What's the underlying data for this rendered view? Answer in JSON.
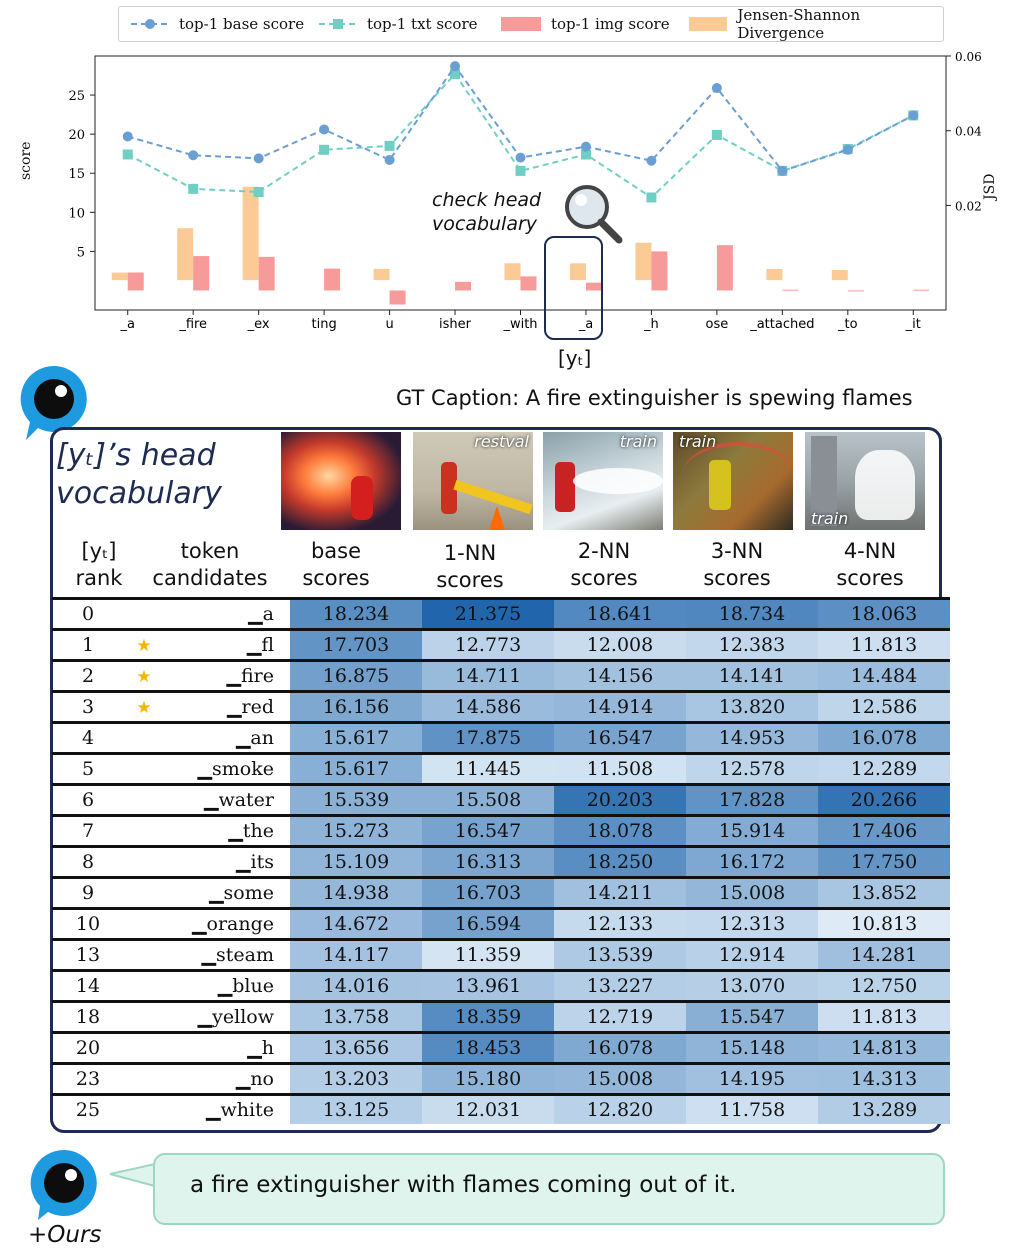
{
  "chart_data": {
    "type": "bar+line",
    "legend": [
      "top-1 base score",
      "top-1 txt score",
      "top-1 img score",
      "Jensen-Shannon Divergence"
    ],
    "categories": [
      "_a",
      "_fire",
      "_ex",
      "ting",
      "u",
      "isher",
      "_with",
      "_a",
      "_h",
      "ose",
      "_attached",
      "_to",
      "_it"
    ],
    "left_axis": {
      "label": "score",
      "ticks": [
        5,
        10,
        15,
        20,
        25
      ],
      "range": [
        -2.5,
        30
      ]
    },
    "right_axis": {
      "label": "JSD",
      "ticks": [
        "0.02",
        "0.04",
        "0.06"
      ],
      "range": [
        -0.008,
        0.06
      ]
    },
    "series": [
      {
        "name": "top-1 base score",
        "kind": "line",
        "axis": "left",
        "color": "#6b9fd4",
        "values": [
          19.7,
          17.3,
          16.9,
          20.6,
          16.7,
          28.7,
          17.0,
          18.4,
          16.6,
          25.9,
          15.3,
          18.0,
          22.4
        ]
      },
      {
        "name": "top-1 txt score",
        "kind": "line",
        "axis": "left",
        "color": "#6fcfc4",
        "values": [
          17.4,
          13.0,
          12.6,
          18.0,
          18.5,
          27.7,
          15.3,
          17.4,
          11.9,
          19.9,
          15.3,
          18.1,
          22.4
        ]
      },
      {
        "name": "top-1 img score",
        "kind": "bar",
        "axis": "left",
        "color": "#f79a9a",
        "values": [
          2.3,
          4.4,
          4.3,
          2.8,
          -1.8,
          1.1,
          1.8,
          1.0,
          5.0,
          5.8,
          0.1,
          -0.1,
          0.1
        ]
      },
      {
        "name": "Jensen-Shannon Divergence",
        "kind": "bar",
        "axis": "right",
        "color": "#fccb95",
        "values": [
          0.002,
          0.0139,
          0.025,
          0.0,
          0.003,
          0.0,
          0.0045,
          0.0045,
          0.01,
          0.0,
          0.003,
          0.0027,
          0.0
        ]
      }
    ],
    "highlight_index": 7
  },
  "annotation": {
    "line1": "check head",
    "line2": "vocabulary",
    "icon": "magnifier-icon"
  },
  "target_token_label": "[yₜ]",
  "gt_caption": "GT Caption: A fire extinguisher is spewing flames",
  "card": {
    "title_line1": "[yₜ]’s head",
    "title_line2": "vocabulary",
    "thumbnails": [
      {
        "label": "",
        "theme": "fire-extinguisher-flames"
      },
      {
        "label": "restval",
        "theme": "hydrant-hose"
      },
      {
        "label": "train",
        "theme": "hydrant-spray"
      },
      {
        "label": "train",
        "theme": "hydrant-rainbow"
      },
      {
        "label": "train",
        "theme": "street-water"
      }
    ],
    "headers": [
      {
        "l1": "[yₜ]",
        "l2": "rank"
      },
      {
        "l1": "token",
        "l2": "candidates"
      },
      {
        "l1": "base",
        "l2": "scores"
      },
      {
        "l1": "1-NN",
        "l2": "scores"
      },
      {
        "l1": "2-NN",
        "l2": "scores"
      },
      {
        "l1": "3-NN",
        "l2": "scores"
      },
      {
        "l1": "4-NN",
        "l2": "scores"
      }
    ],
    "rows": [
      {
        "rank": "0",
        "star": false,
        "token": "▁a",
        "scores": [
          "18.234",
          "21.375",
          "18.641",
          "18.734",
          "18.063"
        ]
      },
      {
        "rank": "1",
        "star": true,
        "token": "▁fl",
        "scores": [
          "17.703",
          "12.773",
          "12.008",
          "12.383",
          "11.813"
        ]
      },
      {
        "rank": "2",
        "star": true,
        "token": "▁fire",
        "scores": [
          "16.875",
          "14.711",
          "14.156",
          "14.141",
          "14.484"
        ]
      },
      {
        "rank": "3",
        "star": true,
        "token": "▁red",
        "scores": [
          "16.156",
          "14.586",
          "14.914",
          "13.820",
          "12.586"
        ]
      },
      {
        "rank": "4",
        "star": false,
        "token": "▁an",
        "scores": [
          "15.617",
          "17.875",
          "16.547",
          "14.953",
          "16.078"
        ]
      },
      {
        "rank": "5",
        "star": false,
        "token": "▁smoke",
        "scores": [
          "15.617",
          "11.445",
          "11.508",
          "12.578",
          "12.289"
        ]
      },
      {
        "rank": "6",
        "star": false,
        "token": "▁water",
        "scores": [
          "15.539",
          "15.508",
          "20.203",
          "17.828",
          "20.266"
        ]
      },
      {
        "rank": "7",
        "star": false,
        "token": "▁the",
        "scores": [
          "15.273",
          "16.547",
          "18.078",
          "15.914",
          "17.406"
        ]
      },
      {
        "rank": "8",
        "star": false,
        "token": "▁its",
        "scores": [
          "15.109",
          "16.313",
          "18.250",
          "16.172",
          "17.750"
        ]
      },
      {
        "rank": "9",
        "star": false,
        "token": "▁some",
        "scores": [
          "14.938",
          "16.703",
          "14.211",
          "15.008",
          "13.852"
        ]
      },
      {
        "rank": "10",
        "star": false,
        "token": "▁orange",
        "scores": [
          "14.672",
          "16.594",
          "12.133",
          "12.313",
          "10.813"
        ]
      },
      {
        "rank": "13",
        "star": false,
        "token": "▁steam",
        "scores": [
          "14.117",
          "11.359",
          "13.539",
          "12.914",
          "14.281"
        ]
      },
      {
        "rank": "14",
        "star": false,
        "token": "▁blue",
        "scores": [
          "14.016",
          "13.961",
          "13.227",
          "13.070",
          "12.750"
        ]
      },
      {
        "rank": "18",
        "star": false,
        "token": "▁yellow",
        "scores": [
          "13.758",
          "18.359",
          "12.719",
          "15.547",
          "11.813"
        ]
      },
      {
        "rank": "20",
        "star": false,
        "token": "▁h",
        "scores": [
          "13.656",
          "18.453",
          "16.078",
          "15.148",
          "14.813"
        ]
      },
      {
        "rank": "23",
        "star": false,
        "token": "▁no",
        "scores": [
          "13.203",
          "15.180",
          "15.008",
          "14.195",
          "14.313"
        ]
      },
      {
        "rank": "25",
        "star": false,
        "token": "▁white",
        "scores": [
          "13.125",
          "12.031",
          "12.820",
          "11.758",
          "13.289"
        ]
      }
    ]
  },
  "output_caption": "a fire extinguisher with flames coming out of it.",
  "method_label": "+Ours"
}
